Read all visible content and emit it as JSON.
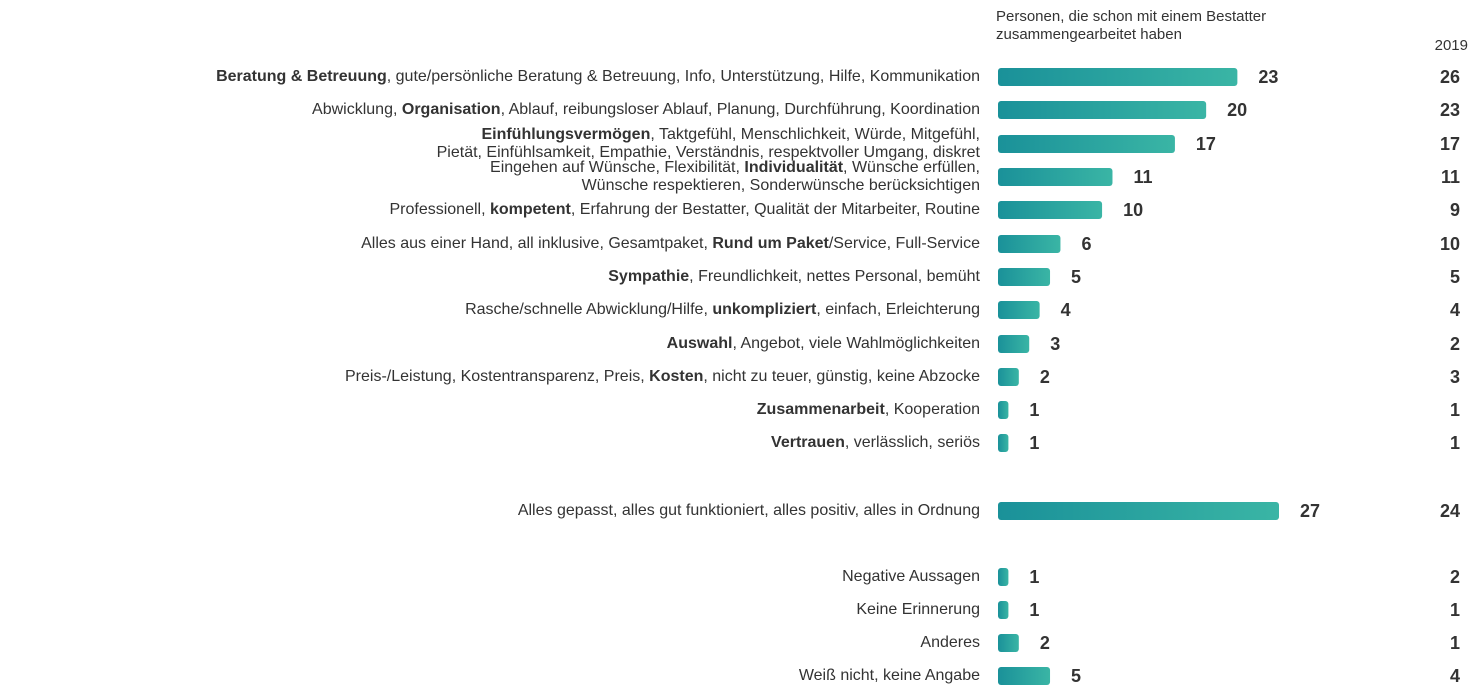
{
  "chart_data": {
    "type": "bar",
    "orientation": "horizontal",
    "categories": [
      [
        [
          {
            "text": "Beratung & Betreuung",
            "bold": true
          },
          {
            "text": ", gute/persönliche Beratung & Betreuung, Info, Unterstützung, Hilfe, Kommunikation",
            "bold": false
          }
        ]
      ],
      [
        [
          {
            "text": "Abwicklung, ",
            "bold": false
          },
          {
            "text": "Organisation",
            "bold": true
          },
          {
            "text": ", Ablauf, reibungsloser Ablauf, Planung, Durchführung, Koordination",
            "bold": false
          }
        ]
      ],
      [
        [
          {
            "text": "Einfühlungsvermögen",
            "bold": true
          },
          {
            "text": ", Taktgefühl, Menschlichkeit, Würde, Mitgefühl,",
            "bold": false
          }
        ],
        [
          {
            "text": "Pietät, Einfühlsamkeit, Empathie, Verständnis, respektvoller Umgang, diskret",
            "bold": false
          }
        ]
      ],
      [
        [
          {
            "text": "Eingehen auf Wünsche, Flexibilität, ",
            "bold": false
          },
          {
            "text": "Individualität",
            "bold": true
          },
          {
            "text": ", Wünsche erfüllen,",
            "bold": false
          }
        ],
        [
          {
            "text": "Wünsche respektieren, Sonderwünsche berücksichtigen",
            "bold": false
          }
        ]
      ],
      [
        [
          {
            "text": "Professionell, ",
            "bold": false
          },
          {
            "text": "kompetent",
            "bold": true
          },
          {
            "text": ", Erfahrung der Bestatter, Qualität der Mitarbeiter, Routine",
            "bold": false
          }
        ]
      ],
      [
        [
          {
            "text": "Alles aus einer Hand, all inklusive, Gesamtpaket, ",
            "bold": false
          },
          {
            "text": "Rund um Paket",
            "bold": true
          },
          {
            "text": "/Service, Full-Service",
            "bold": false
          }
        ]
      ],
      [
        [
          {
            "text": "Sympathie",
            "bold": true
          },
          {
            "text": ", Freundlichkeit, nettes Personal, bemüht",
            "bold": false
          }
        ]
      ],
      [
        [
          {
            "text": "Rasche/schnelle Abwicklung/Hilfe, ",
            "bold": false
          },
          {
            "text": "unkompliziert",
            "bold": true
          },
          {
            "text": ", einfach, Erleichterung",
            "bold": false
          }
        ]
      ],
      [
        [
          {
            "text": "Auswahl",
            "bold": true
          },
          {
            "text": ", Angebot, viele Wahlmöglichkeiten",
            "bold": false
          }
        ]
      ],
      [
        [
          {
            "text": "Preis-/Leistung, Kostentransparenz, Preis, ",
            "bold": false
          },
          {
            "text": "Kosten",
            "bold": true
          },
          {
            "text": ", nicht zu teuer, günstig, keine Abzocke",
            "bold": false
          }
        ]
      ],
      [
        [
          {
            "text": "Zusammenarbeit",
            "bold": true
          },
          {
            "text": ", Kooperation",
            "bold": false
          }
        ]
      ],
      [
        [
          {
            "text": "Vertrauen",
            "bold": true
          },
          {
            "text": ", verlässlich, seriös",
            "bold": false
          }
        ]
      ],
      [
        [
          {
            "text": "Alles gepasst, alles gut funktioniert, alles positiv, alles in Ordnung",
            "bold": false
          }
        ]
      ],
      [
        [
          {
            "text": "Negative Aussagen",
            "bold": false
          }
        ]
      ],
      [
        [
          {
            "text": "Keine Erinnerung",
            "bold": false
          }
        ]
      ],
      [
        [
          {
            "text": "Anderes",
            "bold": false
          }
        ]
      ],
      [
        [
          {
            "text": "Weiß nicht, keine Angabe",
            "bold": false
          }
        ]
      ]
    ],
    "series": [
      {
        "name": "Personen, die schon mit einem Bestatter zusammengearbeitet haben",
        "color": "#3ab5a5",
        "values": [
          23,
          20,
          17,
          11,
          10,
          6,
          5,
          4,
          3,
          2,
          1,
          1,
          27,
          1,
          1,
          2,
          5
        ]
      },
      {
        "name": "2019",
        "values": [
          26,
          23,
          17,
          11,
          9,
          10,
          5,
          4,
          2,
          3,
          1,
          1,
          24,
          2,
          1,
          1,
          4
        ]
      }
    ]
  }
}
